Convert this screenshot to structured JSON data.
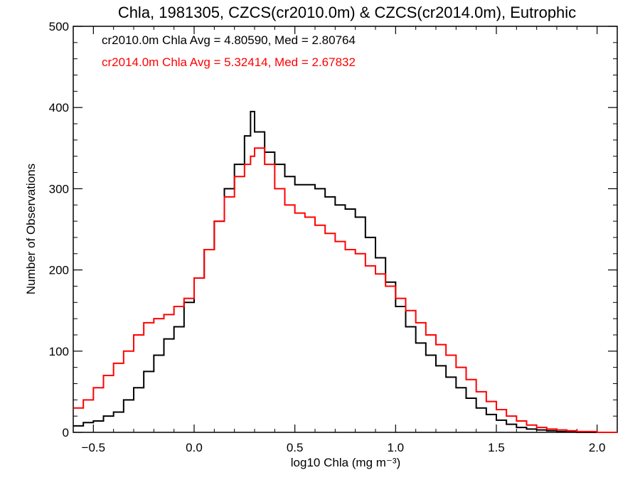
{
  "chart_data": {
    "type": "line",
    "title": "Chla, 1981305, CZCS(cr2010.0m) & CZCS(cr2014.0m), Eutrophic",
    "xlabel": "log10 Chla (mg m⁻³)",
    "ylabel": "Number of Observations",
    "xlim": [
      -0.6,
      2.1
    ],
    "ylim": [
      0,
      500
    ],
    "xticks": [
      -0.5,
      0.0,
      0.5,
      1.0,
      1.5,
      2.0
    ],
    "xtick_labels": [
      "−0.5",
      "0.0",
      "0.5",
      "1.0",
      "1.5",
      "2.0"
    ],
    "yticks": [
      0,
      100,
      200,
      300,
      400,
      500
    ],
    "ytick_labels": [
      "0",
      "100",
      "200",
      "300",
      "400",
      "500"
    ],
    "grid": false,
    "step": true,
    "annotations": [
      {
        "text": "cr2010.0m Chla Avg = 4.80590, Med = 2.80764",
        "color": "#000000"
      },
      {
        "text": "cr2014.0m Chla Avg = 5.32414, Med = 2.67832",
        "color": "#ff0000"
      }
    ],
    "series": [
      {
        "name": "cr2010.0m",
        "color": "#000000",
        "x": [
          -0.6,
          -0.55,
          -0.5,
          -0.45,
          -0.4,
          -0.35,
          -0.3,
          -0.25,
          -0.2,
          -0.15,
          -0.1,
          -0.05,
          0.0,
          0.05,
          0.1,
          0.15,
          0.2,
          0.25,
          0.28,
          0.3,
          0.35,
          0.4,
          0.45,
          0.5,
          0.55,
          0.6,
          0.65,
          0.7,
          0.75,
          0.8,
          0.85,
          0.9,
          0.95,
          1.0,
          1.05,
          1.1,
          1.15,
          1.2,
          1.25,
          1.3,
          1.35,
          1.4,
          1.45,
          1.5,
          1.55,
          1.6,
          1.65,
          1.7,
          1.75,
          1.8,
          1.85,
          1.9,
          1.95,
          2.0,
          2.05,
          2.1
        ],
        "values": [
          8,
          12,
          14,
          20,
          25,
          40,
          55,
          75,
          95,
          115,
          130,
          160,
          190,
          225,
          260,
          300,
          330,
          365,
          395,
          370,
          345,
          330,
          315,
          305,
          305,
          300,
          290,
          280,
          275,
          265,
          240,
          215,
          185,
          155,
          130,
          110,
          95,
          82,
          68,
          55,
          42,
          30,
          22,
          15,
          10,
          6,
          4,
          3,
          2,
          1,
          1,
          0,
          0,
          0,
          0,
          0
        ]
      },
      {
        "name": "cr2014.0m",
        "color": "#ff0000",
        "x": [
          -0.6,
          -0.55,
          -0.5,
          -0.45,
          -0.4,
          -0.35,
          -0.3,
          -0.25,
          -0.2,
          -0.15,
          -0.1,
          -0.05,
          0.0,
          0.05,
          0.1,
          0.15,
          0.2,
          0.25,
          0.28,
          0.3,
          0.35,
          0.4,
          0.45,
          0.5,
          0.55,
          0.6,
          0.65,
          0.7,
          0.75,
          0.8,
          0.85,
          0.9,
          0.95,
          1.0,
          1.05,
          1.1,
          1.15,
          1.2,
          1.25,
          1.3,
          1.35,
          1.4,
          1.45,
          1.5,
          1.55,
          1.6,
          1.65,
          1.7,
          1.75,
          1.8,
          1.85,
          1.9,
          1.95,
          2.0,
          2.05,
          2.1
        ],
        "values": [
          30,
          40,
          55,
          70,
          85,
          100,
          120,
          135,
          140,
          145,
          155,
          165,
          190,
          225,
          260,
          290,
          315,
          330,
          340,
          350,
          330,
          300,
          280,
          270,
          265,
          255,
          245,
          235,
          225,
          220,
          205,
          195,
          180,
          165,
          150,
          135,
          120,
          108,
          95,
          80,
          65,
          50,
          38,
          28,
          20,
          14,
          9,
          6,
          4,
          3,
          2,
          1,
          1,
          0,
          0,
          0
        ]
      }
    ]
  }
}
